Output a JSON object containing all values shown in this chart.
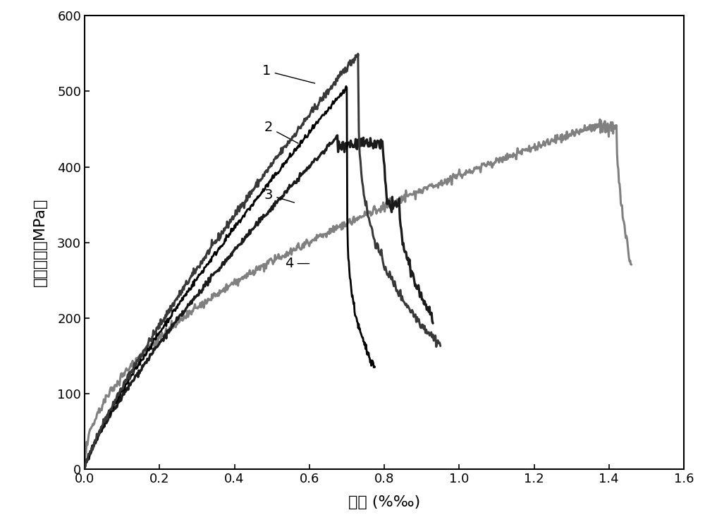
{
  "title": "",
  "xlabel": "应变 (%‰)",
  "ylabel": "弯曲应力（MPa）",
  "xlim": [
    0.0,
    1.6
  ],
  "ylim": [
    0,
    600
  ],
  "xticks": [
    0.0,
    0.2,
    0.4,
    0.6,
    0.8,
    1.0,
    1.2,
    1.4,
    1.6
  ],
  "yticks": [
    0,
    100,
    200,
    300,
    400,
    500,
    600
  ],
  "background_color": "#ffffff",
  "curve1_color": "#383838",
  "curve2_color": "#000000",
  "curve3_color": "#1a1a1a",
  "curve4_color": "#808080",
  "lw1": 2.2,
  "lw2": 2.0,
  "lw3": 2.4,
  "lw4": 2.2
}
